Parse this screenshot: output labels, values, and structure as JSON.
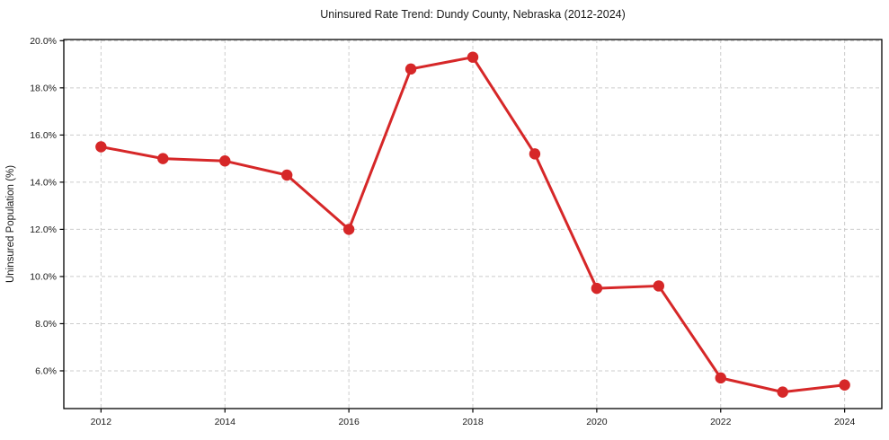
{
  "chart_data": {
    "type": "line",
    "title": "Uninsured Rate Trend: Dundy County, Nebraska (2012-2024)",
    "xlabel": "",
    "ylabel": "Uninsured Population (%)",
    "x": [
      2012,
      2013,
      2014,
      2015,
      2016,
      2017,
      2018,
      2019,
      2020,
      2021,
      2022,
      2023,
      2024
    ],
    "values": [
      15.5,
      15.0,
      14.9,
      14.3,
      12.0,
      18.8,
      19.3,
      15.2,
      9.5,
      9.6,
      5.7,
      5.1,
      5.4
    ],
    "x_ticks": [
      2012,
      2014,
      2016,
      2018,
      2020,
      2022,
      2024
    ],
    "y_ticks": [
      6,
      8,
      10,
      12,
      14,
      16,
      18,
      20
    ],
    "y_tick_suffix": "%",
    "y_tick_decimals": 1,
    "xlim": [
      2011.4,
      2024.6
    ],
    "ylim": [
      4.4,
      20.05
    ],
    "grid": "on",
    "grid_style": "dashed",
    "legend_position": "none",
    "colors": {
      "line": "#d62728",
      "marker": "#d62728",
      "grid": "#cccccc",
      "spine": "#000000",
      "background": "#ffffff"
    }
  }
}
